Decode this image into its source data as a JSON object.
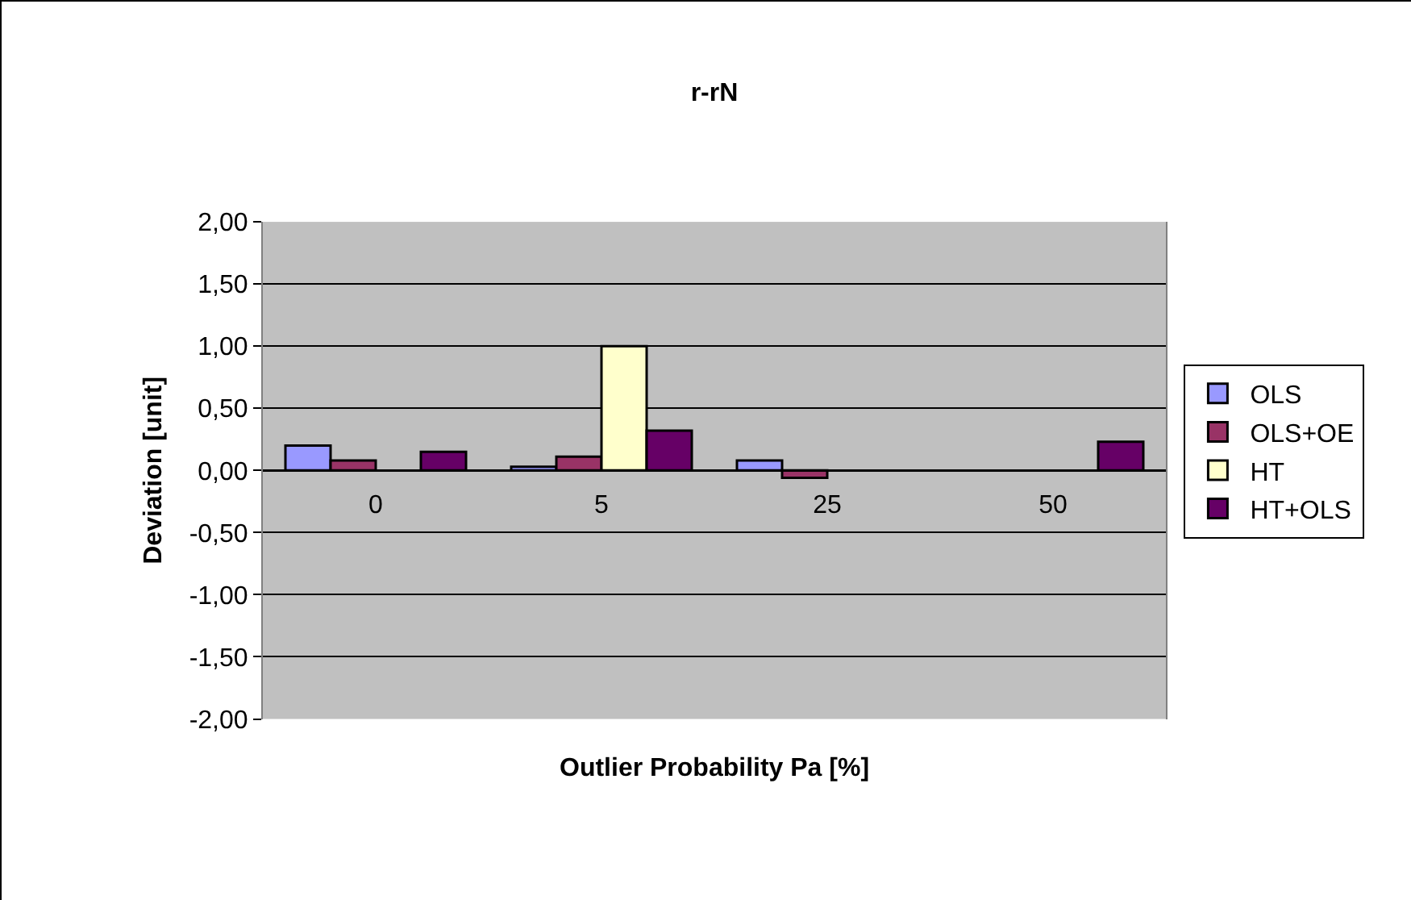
{
  "chart_data": {
    "type": "bar",
    "title": "r-rN",
    "xlabel": "Outlier Probability Pa [%]",
    "ylabel": "Deviation [unit]",
    "categories": [
      "0",
      "5",
      "25",
      "50"
    ],
    "series": [
      {
        "name": "OLS",
        "color": "#9999ff",
        "values": [
          0.2,
          0.03,
          0.08,
          null
        ]
      },
      {
        "name": "OLS+OE",
        "color": "#993366",
        "values": [
          0.08,
          0.11,
          -0.06,
          null
        ]
      },
      {
        "name": "HT",
        "color": "#ffffcc",
        "values": [
          null,
          1.0,
          null,
          null
        ]
      },
      {
        "name": "HT+OLS",
        "color": "#660066",
        "values": [
          0.15,
          0.32,
          null,
          0.23
        ]
      }
    ],
    "ylim": [
      -2,
      2
    ],
    "yticks": [
      {
        "value": -2,
        "label": "-2,00"
      },
      {
        "value": -1.5,
        "label": "-1,50"
      },
      {
        "value": -1,
        "label": "-1,00"
      },
      {
        "value": -0.5,
        "label": "-0,50"
      },
      {
        "value": 0,
        "label": "0,00"
      },
      {
        "value": 0.5,
        "label": "0,50"
      },
      {
        "value": 1,
        "label": "1,00"
      },
      {
        "value": 1.5,
        "label": "1,50"
      },
      {
        "value": 2,
        "label": "2,00"
      }
    ],
    "grid": "y",
    "legend": "right"
  }
}
